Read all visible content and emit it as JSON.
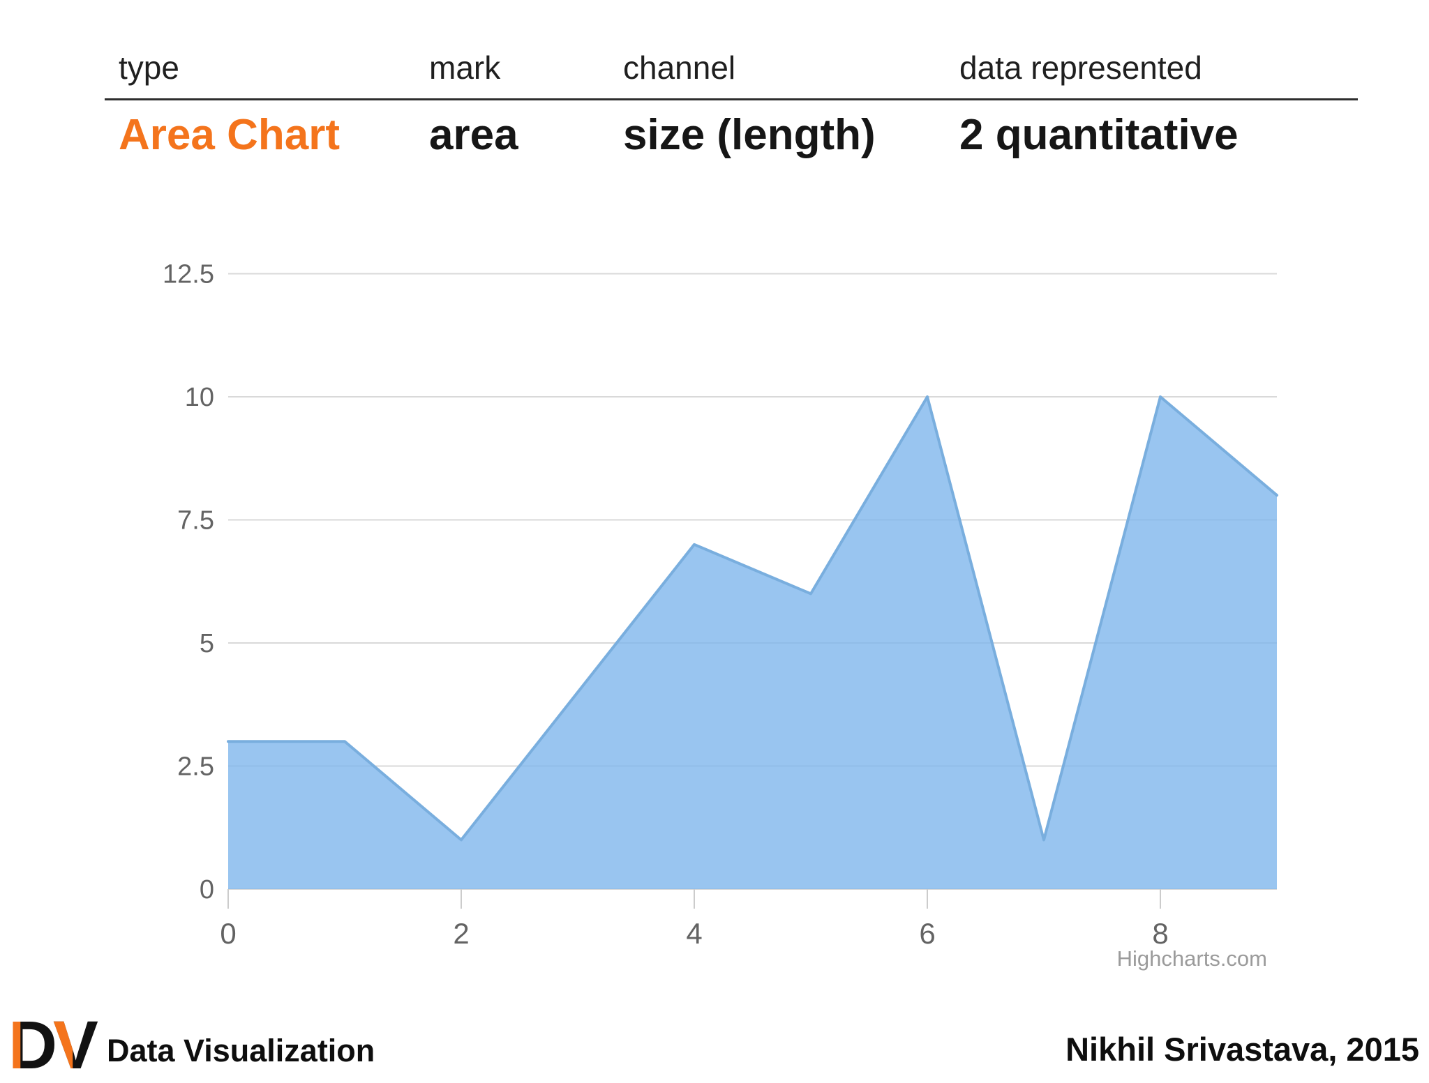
{
  "table": {
    "headers": [
      "type",
      "mark",
      "channel",
      "data represented"
    ],
    "row": {
      "type": "Area Chart",
      "mark": "area",
      "channel": "size (length)",
      "data": "2 quantitative"
    }
  },
  "chart_data": {
    "type": "area",
    "x": [
      0,
      1,
      2,
      3,
      4,
      5,
      6,
      7,
      8,
      9
    ],
    "values": [
      3,
      3,
      1,
      4,
      7,
      6,
      10,
      1,
      10,
      8
    ],
    "title": "",
    "xlabel": "",
    "ylabel": "",
    "xlim": [
      0,
      9
    ],
    "ylim": [
      0,
      12.5
    ],
    "xticks": [
      0,
      2,
      4,
      6,
      8
    ],
    "yticks": [
      0,
      2.5,
      5,
      7.5,
      10,
      12.5
    ],
    "grid": true,
    "legend": false,
    "area_fill": "#7cb5ec",
    "area_fill_opacity": 0.78,
    "line_color": "#79aede",
    "credit": "Highcharts.com"
  },
  "footer": {
    "logo": "DV",
    "app_title": "Data Visualization",
    "author": "Nikhil Srivastava, 2015"
  },
  "colors": {
    "accent_orange": "#F4741C"
  }
}
